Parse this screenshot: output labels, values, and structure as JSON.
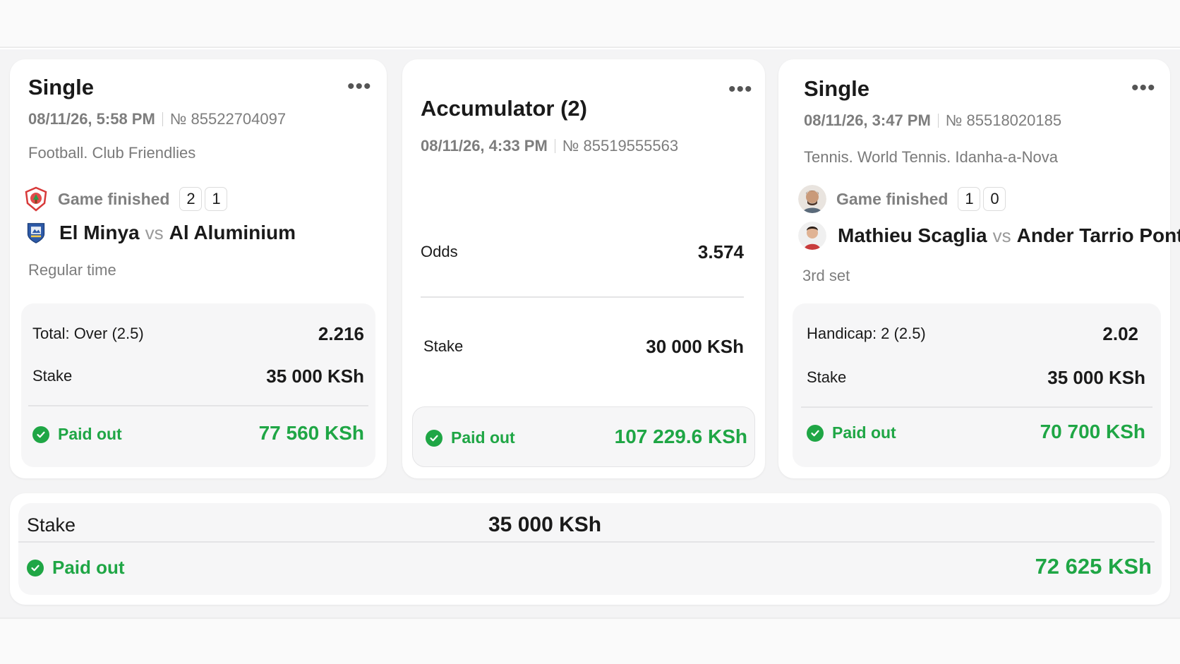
{
  "bets": [
    {
      "type": "Single",
      "datetime": "08/11/26, 5:58 PM",
      "number": "№ 85522704097",
      "league": "Football. Club Friendlies",
      "status": "Game finished",
      "score": [
        "2",
        "1"
      ],
      "team1": "El Minya",
      "vs": "vs",
      "team2": "Al Aluminium",
      "period": "Regular time",
      "market_label": "Total: Over (2.5)",
      "odds": "2.216",
      "stake_label": "Stake",
      "stake": "35 000 KSh",
      "paid_label": "Paid out",
      "paid_value": "77 560 KSh"
    },
    {
      "type": "Accumulator (2)",
      "datetime": "08/11/26, 4:33 PM",
      "number": "№ 85519555563",
      "odds_label": "Odds",
      "odds": "3.574",
      "stake_label": "Stake",
      "stake": "30 000 KSh",
      "paid_label": "Paid out",
      "paid_value": "107 229.6 KSh"
    },
    {
      "type": "Single",
      "datetime": "08/11/26, 3:47 PM",
      "number": "№ 85518020185",
      "league": "Tennis. World Tennis. Idanha-a-Nova",
      "status": "Game finished",
      "score": [
        "1",
        "0"
      ],
      "team1": "Mathieu Scaglia",
      "vs": "vs",
      "team2": "Ander Tarrio Ponte",
      "period": "3rd set",
      "market_label": "Handicap: 2 (2.5)",
      "odds": "2.02",
      "stake_label": "Stake",
      "stake": "35 000 KSh",
      "paid_label": "Paid out",
      "paid_value": "70 700 KSh"
    }
  ],
  "summary": {
    "stake_label": "Stake",
    "stake": "35 000 KSh",
    "paid_label": "Paid out",
    "paid_value": "72 625 KSh"
  },
  "icons": {
    "more": "more-horizontal-icon",
    "check": "check-circle-icon",
    "logo_home": "el-minya-logo",
    "logo_away": "al-aluminium-logo",
    "avatar1": "player-avatar",
    "avatar2": "player-avatar"
  },
  "colors": {
    "paid_green": "#1fa645",
    "muted_text": "#7d7d7d",
    "panel_bg": "#f4f4f5"
  }
}
